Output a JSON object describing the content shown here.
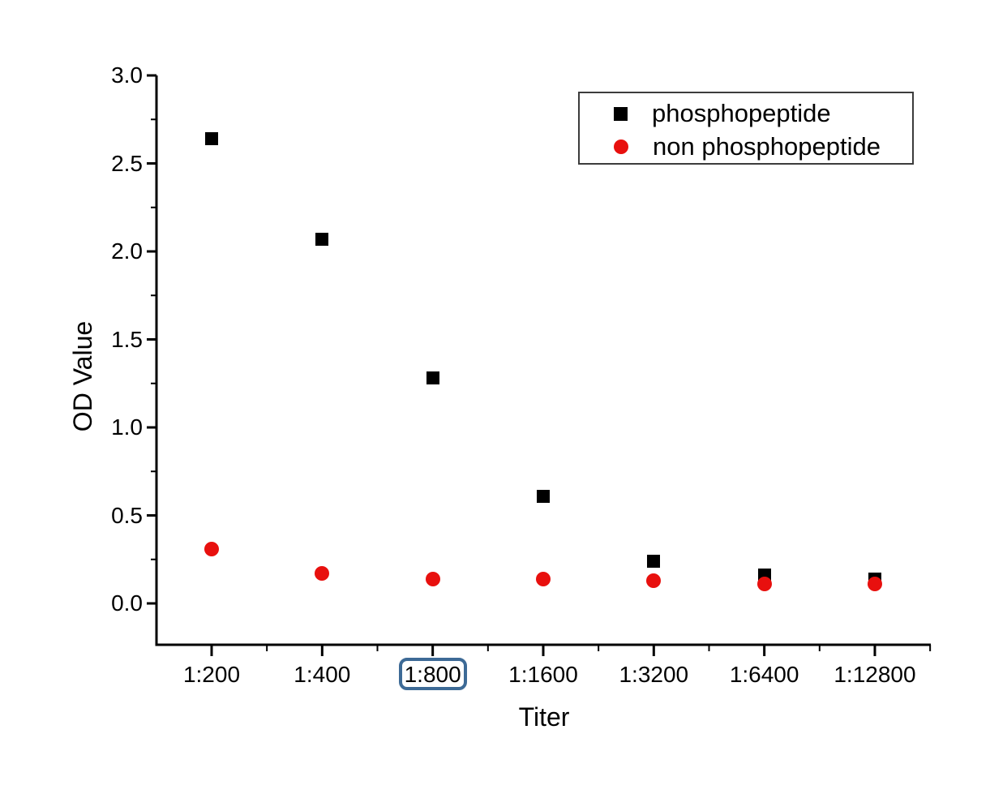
{
  "chart_data": {
    "type": "scatter",
    "title": "",
    "xlabel": "Titer",
    "ylabel": "OD Value",
    "categories": [
      "1:200",
      "1:400",
      "1:800",
      "1:1600",
      "1:3200",
      "1:6400",
      "1:12800"
    ],
    "series": [
      {
        "name": "phosphopeptide",
        "marker": "square",
        "color": "#000000",
        "values": [
          2.64,
          2.07,
          1.28,
          0.61,
          0.24,
          0.16,
          0.14
        ]
      },
      {
        "name": "non phosphopeptide",
        "marker": "circle",
        "color": "#e8100e",
        "values": [
          0.31,
          0.17,
          0.14,
          0.14,
          0.13,
          0.11,
          0.11
        ]
      }
    ],
    "yticks": [
      0.0,
      0.5,
      1.0,
      1.5,
      2.0,
      2.5,
      3.0
    ],
    "yticklabels": [
      "0.0",
      "0.5",
      "1.0",
      "1.5",
      "2.0",
      "2.5",
      "3.0"
    ],
    "ylim": [
      -0.235,
      3.0
    ],
    "grid": false,
    "legend_position": "top-right"
  },
  "annotation": {
    "type": "highlight-box",
    "target_label": "1:800",
    "target_category_index": 2,
    "color": "#3d6a96"
  },
  "colors": {
    "axis": "#000000",
    "background": "#ffffff",
    "legend_border": "#3c3c3c"
  }
}
